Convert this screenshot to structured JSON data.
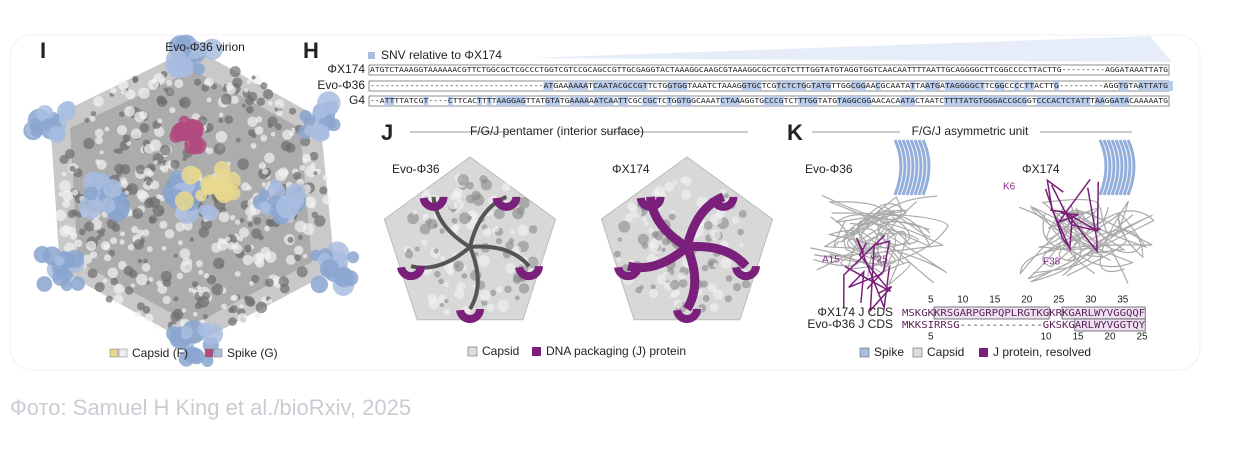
{
  "figure": {
    "panel_I": {
      "label": "I",
      "title": "Evo-Φ36 virion",
      "legend": [
        "Capsid (F)",
        "Spike (G)"
      ]
    },
    "panel_H": {
      "label": "H",
      "legend": "SNV relative to ΦX174",
      "rows": [
        {
          "name": "ΦX174",
          "sequence": "ATGTCTAAAGGTAAAAAACGTTCTGGCGCTCGCCCTGGTCGTCCGCAGCCGTTGCGAGGTACTAAAGGCAAGCGTAAAGGCGCTCGTCTTTGGTATGTAGGTGGTCAACAATTTTAATTGCAGGGGCTTCGGCCCCTTACTTG---------AGGATAAATTATG"
        },
        {
          "name": "Evo-Φ36",
          "sequence": "-----------------------------------ATGAAAAAATCAATACGCCGTTCTGGTGGTAAATCTAAAGGTGCTCGTCTCTGGTATGTTGGCGGAACGCAATATTAATGATAGGGGCTTCGGCCCCTTACTTG---------AGGTGTAATTATG"
        },
        {
          "name": "G4",
          "sequence": "--ATTTTATCGT----CTTCACTTTTAAGGAGTTATGTATGAAAAAATCAATTCGCCGCTCTGGTGGCAAATCTAAAGGTGCCCGTCTTTGGTATGTAGGCGGAACACAATACTAATCTTTTATGTGGGACCGCGGTCCCACTCTATTTAAGGATACAAAAATG"
        }
      ]
    },
    "panel_J": {
      "label": "J",
      "title": "F/G/J pentamer (interior surface)",
      "views": [
        "Evo-Φ36",
        "ΦX174"
      ],
      "legend": [
        "Capsid",
        "DNA packaging (J) protein"
      ]
    },
    "panel_K": {
      "label": "K",
      "title": "F/G/J asymmetric unit",
      "views": [
        "Evo-Φ36",
        "ΦX174"
      ],
      "residues": [
        "A15",
        "Y25",
        "K6",
        "F38"
      ],
      "cds": [
        {
          "name": "ΦX174 J CDS",
          "sequence": "MSKGKKRSGARPGRPQPLRGTKGKRKGARLWYVGGQQF"
        },
        {
          "name": "Evo-Φ36 J CDS",
          "sequence": "MKKSIRRSG-------------GKSKGARLWYVGGTQY"
        }
      ],
      "top_ticks": [
        "5",
        "10",
        "15",
        "20",
        "25",
        "30",
        "35"
      ],
      "bottom_ticks": [
        "5",
        "10",
        "15",
        "20",
        "25"
      ],
      "legend": [
        "Spike",
        "Capsid",
        "J protein, resolved"
      ]
    }
  },
  "caption": "Фото: Samuel H King et al./bioRxiv, 2025"
}
